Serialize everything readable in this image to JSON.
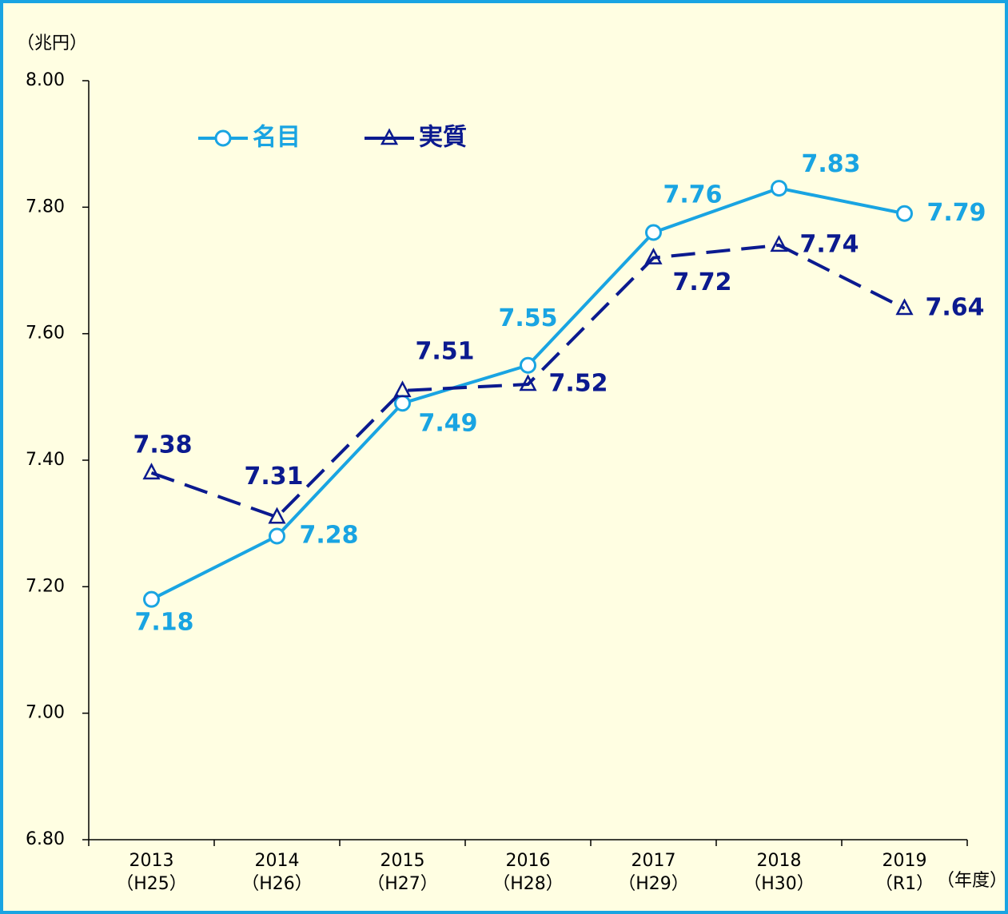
{
  "chart_data": {
    "type": "line",
    "y_unit": "（兆円）",
    "x_unit": "（年度）",
    "categories": [
      "2013",
      "2014",
      "2015",
      "2016",
      "2017",
      "2018",
      "2019"
    ],
    "category_sublabels": [
      "（H25）",
      "（H26）",
      "（H27）",
      "（H28）",
      "（H29）",
      "（H30）",
      "（R1）"
    ],
    "series": [
      {
        "name": "名目",
        "color": "#19a4e2",
        "marker": "circle",
        "dash": false,
        "values": [
          7.18,
          7.28,
          7.49,
          7.55,
          7.76,
          7.83,
          7.79
        ]
      },
      {
        "name": "実質",
        "color": "#0b1a8f",
        "marker": "triangle",
        "dash": true,
        "values": [
          7.38,
          7.31,
          7.51,
          7.52,
          7.72,
          7.74,
          7.64
        ]
      }
    ],
    "ylim": [
      6.8,
      8.0
    ],
    "yticks": [
      {
        "value": 6.8,
        "label": "6.80"
      },
      {
        "value": 7.0,
        "label": "7.00"
      },
      {
        "value": 7.2,
        "label": "7.20"
      },
      {
        "value": 7.4,
        "label": "7.40"
      },
      {
        "value": 7.6,
        "label": "7.60"
      },
      {
        "value": 7.8,
        "label": "7.80"
      },
      {
        "value": 8.0,
        "label": "8.00"
      }
    ],
    "grid": false
  }
}
